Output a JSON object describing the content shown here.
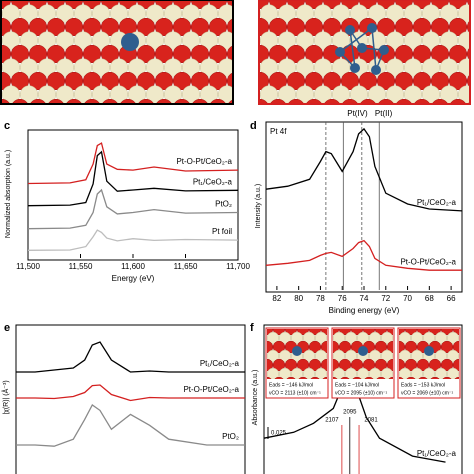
{
  "chart_data": [
    {
      "panel": "c",
      "type": "line",
      "xlabel": "Energy (eV)",
      "ylabel": "Normalized absorption (a.u.)",
      "xlim": [
        11500,
        11700
      ],
      "ylim": [
        0,
        4.5
      ],
      "xticks": [
        {
          "value": 11500,
          "label": "11,500"
        },
        {
          "value": 11550,
          "label": "11,550"
        },
        {
          "value": 11600,
          "label": "11,600"
        },
        {
          "value": 11650,
          "label": "11,650"
        },
        {
          "value": 11700,
          "label": "11,700"
        }
      ],
      "x": [
        11500,
        11540,
        11555,
        11562,
        11566,
        11570,
        11575,
        11585,
        11600,
        11620,
        11650,
        11700
      ],
      "series": [
        {
          "name": "Pt-O-Pt/CeO₂-a",
          "color": "#d42020",
          "values": [
            2.62,
            2.64,
            2.75,
            3.3,
            3.95,
            4.04,
            3.3,
            3.12,
            3.09,
            3.2,
            3.06,
            3.09
          ]
        },
        {
          "name": "Pt₁/CeO₂-a",
          "color": "#000000",
          "values": [
            1.84,
            1.86,
            1.95,
            2.6,
            3.6,
            3.73,
            2.7,
            2.35,
            2.39,
            2.45,
            2.36,
            2.38
          ]
        },
        {
          "name": "PtO₂",
          "color": "#8a8a8a",
          "values": [
            1.03,
            1.05,
            1.15,
            1.6,
            2.25,
            2.39,
            1.8,
            1.55,
            1.6,
            1.7,
            1.58,
            1.6
          ]
        },
        {
          "name": "Pt foil",
          "color": "#bdbdbd",
          "values": [
            0.27,
            0.28,
            0.4,
            0.75,
            0.98,
            0.9,
            0.7,
            0.6,
            0.68,
            0.62,
            0.65,
            0.63
          ]
        }
      ]
    },
    {
      "panel": "d",
      "type": "line",
      "xlabel": "Binding energy (eV)",
      "ylabel": "Intensity (a.u.)",
      "xlim": [
        83,
        65
      ],
      "ylim": [
        0,
        10
      ],
      "xticks": [
        82,
        80,
        78,
        76,
        74,
        72,
        70,
        68,
        66
      ],
      "x": [
        83,
        81,
        79,
        78,
        77.5,
        77,
        76,
        75,
        74.5,
        74,
        73.5,
        73,
        72,
        70,
        68,
        65
      ],
      "series": [
        {
          "name": "Pt₁/CeO₂-a",
          "color": "#000000",
          "values": [
            6.0,
            6.18,
            6.59,
            7.65,
            8.24,
            8.12,
            7.06,
            8.24,
            9.29,
            9.59,
            9.12,
            7.35,
            5.76,
            5.12,
            4.82,
            4.71
          ]
        },
        {
          "name": "Pt-O-Pt/CeO₂-a",
          "color": "#d42020",
          "values": [
            1.47,
            1.59,
            1.76,
            2.06,
            2.18,
            2.24,
            2.0,
            2.47,
            2.82,
            2.94,
            2.59,
            1.88,
            1.47,
            1.29,
            1.18,
            1.18
          ]
        }
      ],
      "ref_lines": [
        {
          "x": 77.5,
          "dash": true
        },
        {
          "x": 75.9,
          "dash": false
        },
        {
          "x": 74.2,
          "dash": true
        },
        {
          "x": 72.6,
          "dash": false
        }
      ],
      "annotations": [
        {
          "text": "Pt(IV)",
          "x": 74.6
        },
        {
          "text": "Pt(II)",
          "x": 72.2
        },
        {
          "text": "Pt 4f"
        }
      ]
    },
    {
      "panel": "e",
      "type": "line",
      "ylabel": "|χ(R)| (Å⁻³)",
      "xlim": [
        0,
        6
      ],
      "ylim": [
        0,
        15
      ],
      "x": [
        0,
        0.5,
        1,
        1.5,
        1.8,
        2.0,
        2.2,
        2.5,
        3,
        3.5,
        4,
        5,
        6
      ],
      "series": [
        {
          "name": "Pt₁/CeO₂-a",
          "color": "#000000",
          "values": [
            10.27,
            10.27,
            10.47,
            10.67,
            11.48,
            12.99,
            13.29,
            11.48,
            10.27,
            10.37,
            10.27,
            10.27,
            10.27
          ]
        },
        {
          "name": "Pt-O-Pt/CeO₂-a",
          "color": "#d42020",
          "values": [
            7.65,
            7.65,
            7.6,
            7.8,
            8.2,
            8.9,
            8.96,
            8.0,
            7.4,
            7.7,
            7.65,
            7.65,
            7.65
          ]
        },
        {
          "name": "PtO₂",
          "color": "#8a8a8a",
          "values": [
            2.92,
            2.92,
            2.8,
            3.5,
            5.5,
            6.95,
            6.4,
            4.5,
            6.0,
            4.9,
            3.5,
            2.92,
            2.92
          ]
        }
      ]
    },
    {
      "panel": "f",
      "type": "line",
      "ylabel": "Absorbance (a.u.)",
      "xlim": [
        2225,
        1925
      ],
      "ylim": [
        0,
        1
      ],
      "x": [
        2225,
        2180,
        2150,
        2120,
        2107,
        2100,
        2095,
        2090,
        2081,
        2070,
        2050,
        2000,
        1950
      ],
      "series": [
        {
          "name": "Pt₁/CeO₂-a",
          "color": "#000000",
          "values": [
            0.24,
            0.28,
            0.34,
            0.44,
            0.58,
            0.68,
            0.74,
            0.66,
            0.52,
            0.38,
            0.24,
            0.12,
            0.08
          ]
        }
      ],
      "markers": [
        2107,
        2095,
        2081
      ],
      "scale_label": "0.025",
      "insets": [
        {
          "energy": "Eads = −146 kJ/mol",
          "freq": "νCO = 2113 (±10) cm⁻¹"
        },
        {
          "energy": "Eads = −104 kJ/mol",
          "freq": "νCO = 2095 (±10) cm⁻¹"
        },
        {
          "energy": "Eads = −153 kJ/mol",
          "freq": "νCO = 2069 (±10) cm⁻¹"
        }
      ]
    }
  ]
}
